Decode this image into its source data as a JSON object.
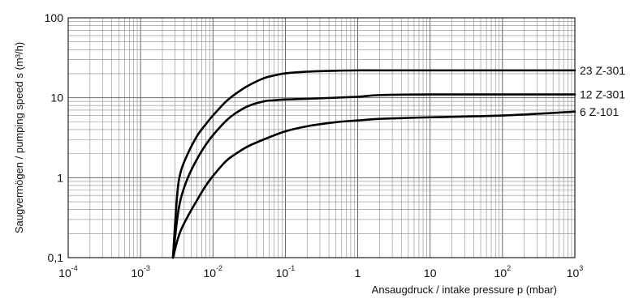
{
  "chart_data": {
    "type": "line",
    "title": "",
    "xlabel": "Ansaugdruck / intake pressure p (mbar)",
    "ylabel": "Saugvermögen / pumping speed  s (m³/h)",
    "xscale": "log",
    "yscale": "log",
    "xlim": [
      0.0001,
      1000
    ],
    "ylim": [
      0.1,
      100
    ],
    "grid": true,
    "x_ticks": [
      {
        "value": 0.0001,
        "base": "10",
        "exp": "-4"
      },
      {
        "value": 0.001,
        "base": "10",
        "exp": "-3"
      },
      {
        "value": 0.01,
        "base": "10",
        "exp": "-2"
      },
      {
        "value": 0.1,
        "base": "10",
        "exp": "-1"
      },
      {
        "value": 1,
        "base": "1",
        "exp": ""
      },
      {
        "value": 10,
        "base": "10",
        "exp": ""
      },
      {
        "value": 100,
        "base": "10",
        "exp": "2"
      },
      {
        "value": 1000,
        "base": "10",
        "exp": "3"
      }
    ],
    "y_ticks": [
      {
        "value": 0.1,
        "label": "0,1"
      },
      {
        "value": 1,
        "label": "1"
      },
      {
        "value": 10,
        "label": "10"
      },
      {
        "value": 100,
        "label": "100"
      }
    ],
    "series": [
      {
        "name": "23 Z-301",
        "x": [
          0.0028,
          0.0032,
          0.0036,
          0.0045,
          0.006,
          0.008,
          0.01,
          0.015,
          0.02,
          0.03,
          0.05,
          0.07,
          0.1,
          0.2,
          0.5,
          1,
          2,
          10,
          100,
          1000
        ],
        "y": [
          0.1,
          0.6,
          1.2,
          2.0,
          3.3,
          4.7,
          6.0,
          8.9,
          11,
          14,
          17.5,
          19,
          20.2,
          21.2,
          21.8,
          22,
          22,
          22,
          22,
          22
        ]
      },
      {
        "name": "12 Z-301",
        "x": [
          0.0028,
          0.0032,
          0.0036,
          0.0045,
          0.006,
          0.008,
          0.01,
          0.015,
          0.02,
          0.03,
          0.05,
          0.07,
          0.1,
          0.2,
          1,
          2,
          10,
          100,
          1000
        ],
        "y": [
          0.1,
          0.3,
          0.55,
          1.0,
          1.7,
          2.6,
          3.4,
          5.1,
          6.3,
          7.8,
          9.0,
          9.3,
          9.5,
          9.7,
          10.3,
          10.8,
          11,
          11,
          11
        ]
      },
      {
        "name": "6 Z-101",
        "x": [
          0.0028,
          0.0032,
          0.0036,
          0.0045,
          0.006,
          0.008,
          0.01,
          0.015,
          0.02,
          0.03,
          0.05,
          0.1,
          0.2,
          0.5,
          1,
          2,
          5,
          10,
          100,
          1000
        ],
        "y": [
          0.1,
          0.16,
          0.22,
          0.33,
          0.52,
          0.8,
          1.05,
          1.6,
          1.95,
          2.45,
          3.0,
          3.8,
          4.4,
          4.95,
          5.2,
          5.45,
          5.6,
          5.7,
          6.0,
          6.7
        ]
      }
    ]
  }
}
